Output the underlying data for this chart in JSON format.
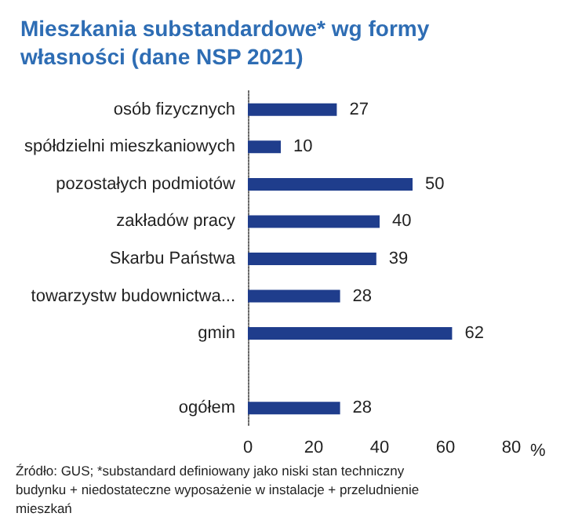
{
  "chart_data": {
    "type": "bar",
    "orientation": "horizontal",
    "title": "Mieszkania substandardowe* wg formy własności (dane NSP 2021)",
    "categories": [
      "osób fizycznych",
      "spółdzielni mieszkaniowych",
      "pozostałych podmiotów",
      "zakładów pracy",
      "Skarbu Państwa",
      "towarzystw budownictwa...",
      "gmin",
      null,
      "ogółem"
    ],
    "values": [
      27,
      10,
      50,
      40,
      39,
      28,
      62,
      null,
      28
    ],
    "color": "#1f3d8c",
    "xlabel": "%",
    "xlim": [
      0,
      80
    ],
    "xticks": [
      0,
      20,
      40,
      60,
      80
    ],
    "data_labels": true,
    "annotations": [
      "Źródło: GUS; *substandard definiowany jako niski stan techniczny budynku + niedostateczne wyposażenie w instalacje + przeludnienie mieszkań"
    ]
  }
}
